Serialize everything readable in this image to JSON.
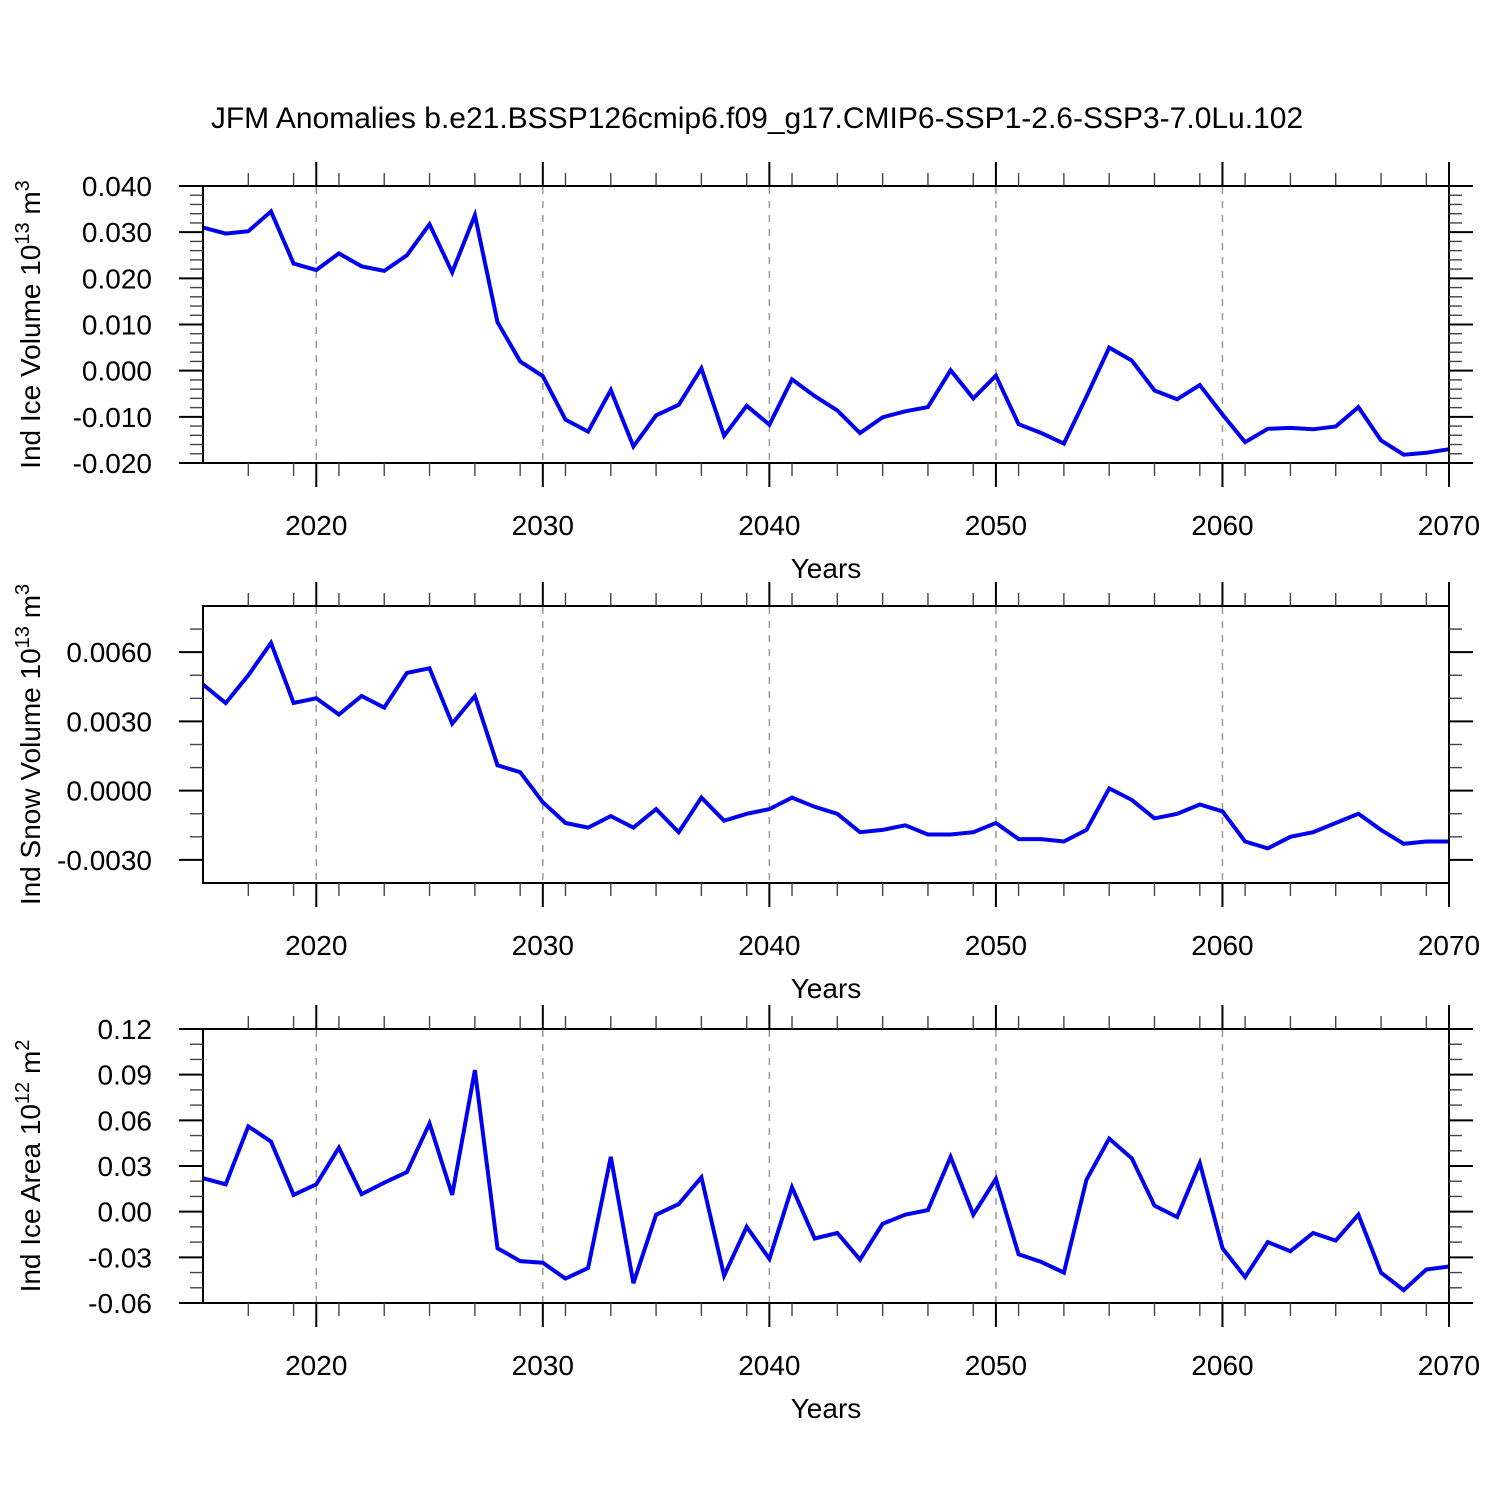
{
  "page_title": "JFM Anomalies b.e21.BSSP126cmip6.f09_g17.CMIP6-SSP1-2.6-SSP3-7.0Lu.102",
  "chart_data": [
    {
      "type": "line",
      "title": "JFM Anomalies b.e21.BSSP126cmip6.f09_g17.CMIP6-SSP1-2.6-SSP3-7.0Lu.102",
      "ylabel": "Ind Ice Volume 10^13^ m^3^",
      "xlabel": "Years",
      "legend": "none",
      "grid": "vertical-dashed",
      "line_color": "#0000ee",
      "xlim": [
        2015,
        2070
      ],
      "ylim": [
        -0.02,
        0.04
      ],
      "xticks": [
        2020,
        2030,
        2040,
        2050,
        2060,
        2070
      ],
      "xtick_labels": [
        "2020",
        "2030",
        "2040",
        "2050",
        "2060",
        "2070"
      ],
      "x_minor_step": 2,
      "yticks": [
        0.04,
        0.03,
        0.02,
        0.01,
        0.0,
        -0.01,
        -0.02
      ],
      "ytick_labels": [
        "0.040",
        "0.030",
        "0.020",
        "0.010",
        "0.000",
        "-0.010",
        "-0.020"
      ],
      "y_minor_step": 0.002,
      "x": [
        2015,
        2016,
        2017,
        2018,
        2019,
        2020,
        2021,
        2022,
        2023,
        2024,
        2025,
        2026,
        2027,
        2028,
        2029,
        2030,
        2031,
        2032,
        2033,
        2034,
        2035,
        2036,
        2037,
        2038,
        2039,
        2040,
        2041,
        2042,
        2043,
        2044,
        2045,
        2046,
        2047,
        2048,
        2049,
        2050,
        2051,
        2052,
        2053,
        2054,
        2055,
        2056,
        2057,
        2058,
        2059,
        2060,
        2061,
        2062,
        2063,
        2064,
        2065,
        2066,
        2067,
        2068,
        2069,
        2070
      ],
      "series": [
        {
          "name": "Ind Ice Volume anomaly",
          "values": [
            0.031,
            0.0297,
            0.0302,
            0.0345,
            0.0232,
            0.0218,
            0.0254,
            0.0226,
            0.0216,
            0.025,
            0.0317,
            0.0213,
            0.0337,
            0.0105,
            0.002,
            -0.0012,
            -0.0106,
            -0.0132,
            -0.0042,
            -0.0164,
            -0.0097,
            -0.0074,
            0.0005,
            -0.0141,
            -0.0076,
            -0.0117,
            -0.0019,
            -0.0055,
            -0.0086,
            -0.0135,
            -0.0101,
            -0.0088,
            -0.0079,
            0.0001,
            -0.006,
            -0.0011,
            -0.0116,
            -0.0135,
            -0.0158,
            -0.0056,
            0.005,
            0.0022,
            -0.0043,
            -0.0062,
            -0.0031,
            -0.0095,
            -0.0155,
            -0.0126,
            -0.0124,
            -0.0127,
            -0.0121,
            -0.0079,
            -0.0151,
            -0.0182,
            -0.0178,
            -0.017
          ]
        }
      ]
    },
    {
      "type": "line",
      "title": "",
      "ylabel": "Ind Snow Volume 10^13^ m^3^",
      "xlabel": "Years",
      "legend": "none",
      "grid": "vertical-dashed",
      "line_color": "#0000ee",
      "xlim": [
        2015,
        2070
      ],
      "ylim": [
        -0.004,
        0.008
      ],
      "xticks": [
        2020,
        2030,
        2040,
        2050,
        2060,
        2070
      ],
      "xtick_labels": [
        "2020",
        "2030",
        "2040",
        "2050",
        "2060",
        "2070"
      ],
      "x_minor_step": 2,
      "yticks": [
        0.006,
        0.003,
        0.0,
        -0.003
      ],
      "ytick_labels": [
        "0.0060",
        "0.0030",
        "0.0000",
        "-0.0030"
      ],
      "y_minor_step": 0.001,
      "x": [
        2015,
        2016,
        2017,
        2018,
        2019,
        2020,
        2021,
        2022,
        2023,
        2024,
        2025,
        2026,
        2027,
        2028,
        2029,
        2030,
        2031,
        2032,
        2033,
        2034,
        2035,
        2036,
        2037,
        2038,
        2039,
        2040,
        2041,
        2042,
        2043,
        2044,
        2045,
        2046,
        2047,
        2048,
        2049,
        2050,
        2051,
        2052,
        2053,
        2054,
        2055,
        2056,
        2057,
        2058,
        2059,
        2060,
        2061,
        2062,
        2063,
        2064,
        2065,
        2066,
        2067,
        2068,
        2069,
        2070
      ],
      "series": [
        {
          "name": "Ind Snow Volume anomaly",
          "values": [
            0.0046,
            0.0038,
            0.005,
            0.0064,
            0.0038,
            0.004,
            0.0033,
            0.0041,
            0.0036,
            0.0051,
            0.0053,
            0.0029,
            0.0041,
            0.0011,
            0.0008,
            -0.0005,
            -0.0014,
            -0.0016,
            -0.0011,
            -0.0016,
            -0.0008,
            -0.0018,
            -0.0003,
            -0.0013,
            -0.001,
            -0.0008,
            -0.0003,
            -0.0007,
            -0.001,
            -0.0018,
            -0.0017,
            -0.0015,
            -0.0019,
            -0.0019,
            -0.0018,
            -0.0014,
            -0.0021,
            -0.0021,
            -0.0022,
            -0.0017,
            0.0001,
            -0.0004,
            -0.0012,
            -0.001,
            -0.0006,
            -0.0009,
            -0.0022,
            -0.0025,
            -0.002,
            -0.0018,
            -0.0014,
            -0.001,
            -0.0017,
            -0.0023,
            -0.0022,
            -0.0022
          ]
        }
      ]
    },
    {
      "type": "line",
      "title": "",
      "ylabel": "Ind Ice Area 10^12^ m^2^",
      "xlabel": "Years",
      "legend": "none",
      "grid": "vertical-dashed",
      "line_color": "#0000ee",
      "xlim": [
        2015,
        2070
      ],
      "ylim": [
        -0.06,
        0.12
      ],
      "xticks": [
        2020,
        2030,
        2040,
        2050,
        2060,
        2070
      ],
      "xtick_labels": [
        "2020",
        "2030",
        "2040",
        "2050",
        "2060",
        "2070"
      ],
      "x_minor_step": 2,
      "yticks": [
        0.12,
        0.09,
        0.06,
        0.03,
        0.0,
        -0.03,
        -0.06
      ],
      "ytick_labels": [
        "0.12",
        "0.09",
        "0.06",
        "0.03",
        "0.00",
        "-0.03",
        "-0.06"
      ],
      "y_minor_step": 0.01,
      "x": [
        2015,
        2016,
        2017,
        2018,
        2019,
        2020,
        2021,
        2022,
        2023,
        2024,
        2025,
        2026,
        2027,
        2028,
        2029,
        2030,
        2031,
        2032,
        2033,
        2034,
        2035,
        2036,
        2037,
        2038,
        2039,
        2040,
        2041,
        2042,
        2043,
        2044,
        2045,
        2046,
        2047,
        2048,
        2049,
        2050,
        2051,
        2052,
        2053,
        2054,
        2055,
        2056,
        2057,
        2058,
        2059,
        2060,
        2061,
        2062,
        2063,
        2064,
        2065,
        2066,
        2067,
        2068,
        2069,
        2070
      ],
      "series": [
        {
          "name": "Ind Ice Area anomaly",
          "values": [
            0.022,
            0.018,
            0.056,
            0.046,
            0.011,
            0.018,
            0.042,
            0.0115,
            0.019,
            0.026,
            0.058,
            0.011,
            0.093,
            -0.024,
            -0.0325,
            -0.0335,
            -0.044,
            -0.037,
            0.036,
            -0.047,
            -0.002,
            0.005,
            0.0226,
            -0.042,
            -0.01,
            -0.031,
            0.016,
            -0.0176,
            -0.014,
            -0.0315,
            -0.008,
            -0.002,
            0.001,
            0.036,
            -0.002,
            0.0215,
            -0.028,
            -0.033,
            -0.04,
            0.021,
            0.048,
            0.035,
            0.004,
            -0.0035,
            0.032,
            -0.024,
            -0.043,
            -0.02,
            -0.026,
            -0.014,
            -0.019,
            -0.002,
            -0.04,
            -0.0515,
            -0.038,
            -0.036
          ]
        }
      ]
    }
  ]
}
